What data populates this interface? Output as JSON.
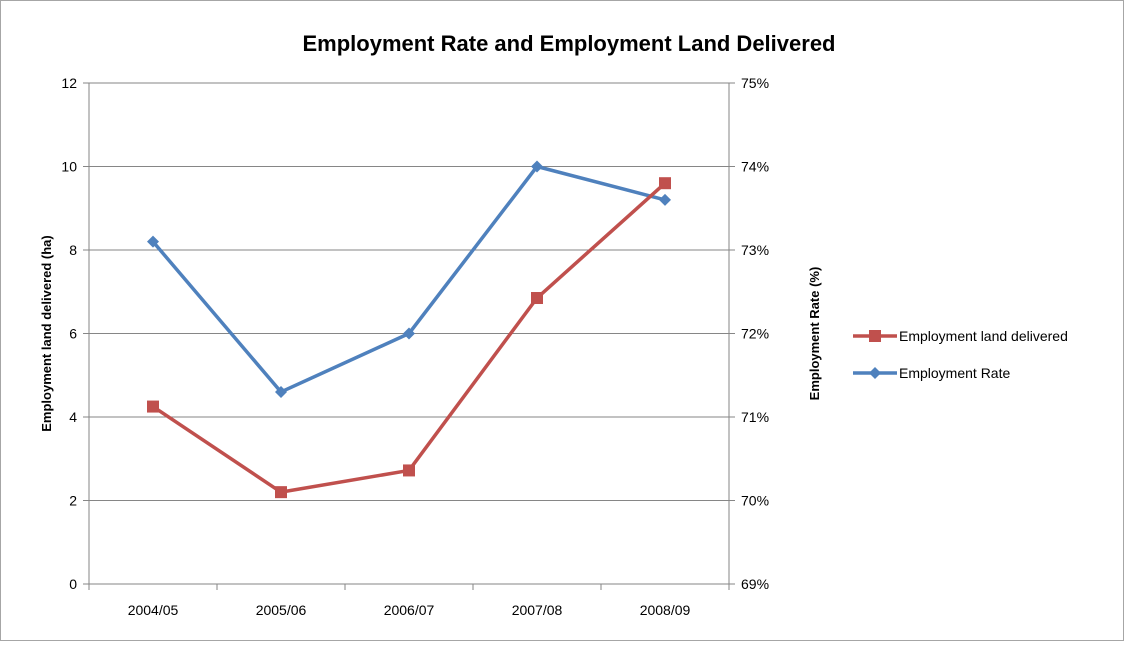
{
  "chart_data": {
    "type": "line",
    "title": "Employment Rate and Employment Land Delivered",
    "categories": [
      "2004/05",
      "2005/06",
      "2006/07",
      "2007/08",
      "2008/09"
    ],
    "series": [
      {
        "name": "Employment land delivered",
        "axis": "left",
        "color": "#C0504D",
        "marker": "square",
        "values": [
          4.25,
          2.2,
          2.72,
          6.85,
          9.6
        ]
      },
      {
        "name": "Employment Rate",
        "axis": "right",
        "color": "#4F81BD",
        "marker": "diamond",
        "values": [
          73.1,
          71.3,
          72.0,
          74.0,
          73.6
        ]
      }
    ],
    "ylabel": "Employment land delivered (ha)",
    "ylim": [
      0,
      12
    ],
    "yticks": [
      "0",
      "2",
      "4",
      "6",
      "8",
      "10",
      "12"
    ],
    "y2label": "Employment Rate (%)",
    "y2lim": [
      69,
      75
    ],
    "y2ticks": [
      "69%",
      "70%",
      "71%",
      "72%",
      "73%",
      "74%",
      "75%"
    ],
    "grid": true,
    "legend_position": "right"
  }
}
